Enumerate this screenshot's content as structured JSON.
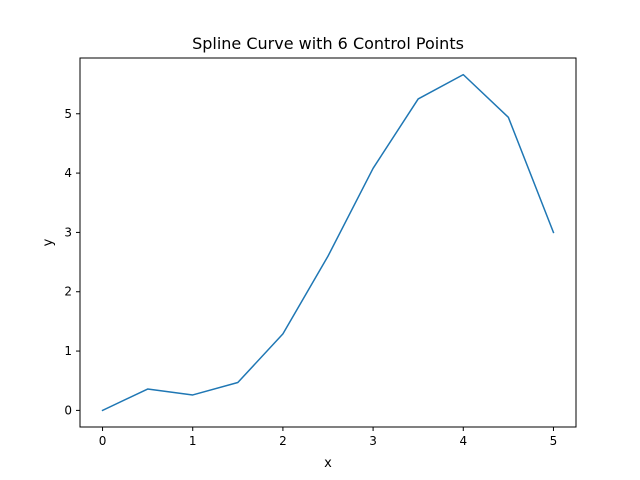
{
  "chart_data": {
    "type": "line",
    "title": "Spline Curve with 6 Control Points",
    "xlabel": "x",
    "ylabel": "y",
    "xlim": [
      -0.25,
      5.25
    ],
    "ylim": [
      -0.28,
      5.94
    ],
    "xticks": [
      0,
      1,
      2,
      3,
      4,
      5
    ],
    "yticks": [
      0,
      1,
      2,
      3,
      4,
      5
    ],
    "grid": false,
    "line_color": "#1f77b4",
    "series": [
      {
        "x": [
          0,
          0.5,
          1,
          1.5,
          2,
          2.5,
          3,
          3.5,
          4,
          4.5,
          5
        ],
        "y": [
          0,
          0.36,
          0.26,
          0.47,
          1.29,
          2.6,
          4.08,
          5.25,
          5.66,
          4.94,
          3.0
        ]
      }
    ]
  }
}
